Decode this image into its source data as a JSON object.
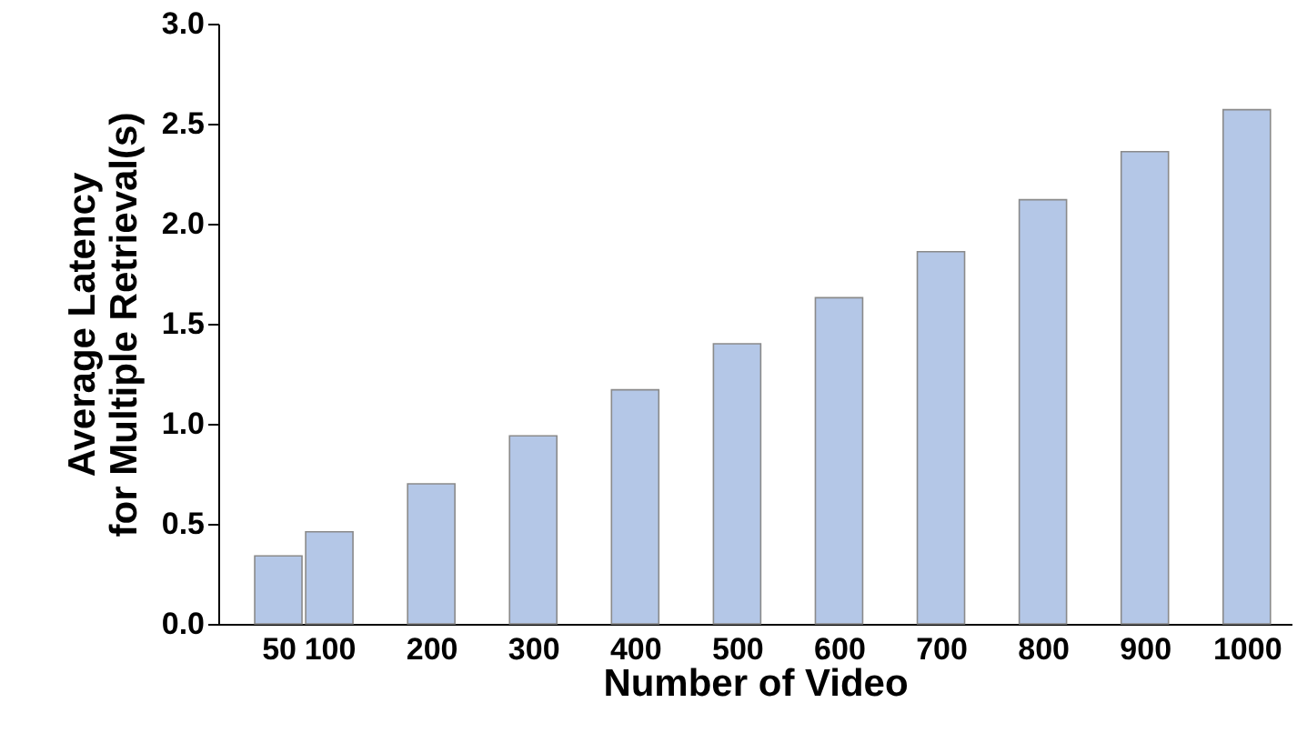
{
  "chart_data": {
    "type": "bar",
    "xlabel": "Number of Video",
    "ylabel": "Average Latency\nfor Multiple Retrieval(s)",
    "x": [
      50,
      100,
      200,
      300,
      400,
      500,
      600,
      700,
      800,
      900,
      1000
    ],
    "values": [
      0.34,
      0.46,
      0.7,
      0.94,
      1.17,
      1.4,
      1.63,
      1.86,
      2.12,
      2.36,
      2.57
    ],
    "color": "#b4c7e7",
    "xlim": [
      0,
      1035
    ],
    "xticks": [
      50,
      100,
      200,
      300,
      400,
      500,
      600,
      700,
      800,
      900,
      1000
    ],
    "ylim": [
      0,
      3.0
    ],
    "yticks": [
      {
        "value": 0,
        "label": "0.0"
      },
      {
        "value": 0.5,
        "label": "0.5"
      },
      {
        "value": 1,
        "label": "1.0"
      },
      {
        "value": 1.5,
        "label": "1.5"
      },
      {
        "value": 2,
        "label": "2.0"
      },
      {
        "value": 2.5,
        "label": "2.5"
      },
      {
        "value": 3,
        "label": "3.0"
      }
    ],
    "grid": false
  }
}
